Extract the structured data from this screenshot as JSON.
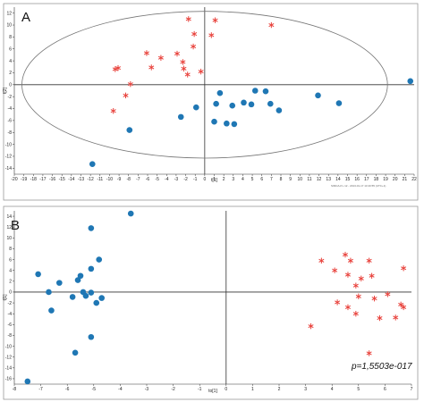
{
  "colors": {
    "group1": "#1f77b4",
    "group2": "#e8403a",
    "frame": "#9a9a9a"
  },
  "chart_data": [
    {
      "type": "scatter",
      "panel_label": "A",
      "xlabel": "t[1]",
      "ylabel": "t[2]",
      "xlim": [
        -20,
        22
      ],
      "ylim": [
        -15,
        13
      ],
      "x_ticks": [
        -20,
        -19,
        -18,
        -17,
        -16,
        -15,
        -14,
        -13,
        -12,
        -11,
        -10,
        -9,
        -8,
        -7,
        -6,
        -5,
        -4,
        -3,
        -2,
        -1,
        0,
        1,
        2,
        3,
        4,
        5,
        6,
        7,
        8,
        9,
        10,
        11,
        12,
        13,
        14,
        15,
        16,
        17,
        18,
        19,
        20,
        21,
        22
      ],
      "y_ticks": [
        12,
        10,
        8,
        6,
        4,
        2,
        0,
        -2,
        -4,
        -6,
        -8,
        -10,
        -12,
        -14
      ],
      "x_tick_labels": [
        "-20",
        "-19",
        "-18",
        "-17",
        "-16",
        "-15",
        "-14",
        "-13",
        "-12",
        "-11",
        "-10",
        "-9",
        "-8",
        "-7",
        "-6",
        "-5",
        "-4",
        "-3",
        "-2",
        "-1",
        "0",
        "1",
        "2",
        "3",
        "4",
        "5",
        "6",
        "7",
        "8",
        "9",
        "10",
        "11",
        "12",
        "13",
        "14",
        "15",
        "16",
        "17",
        "18",
        "19",
        "20",
        "21",
        "22"
      ],
      "y_tick_labels": [
        "12",
        "10",
        "8",
        "6",
        "4",
        "2",
        "0",
        "-2",
        "-4",
        "-6",
        "-8",
        "-10",
        "-12",
        "-14"
      ],
      "ellipse": {
        "cx": 0,
        "cy": 0,
        "rx": 19.2,
        "ry": 12.3
      },
      "footnote": "SIMCA-P+ 12 - 2013-01-17 13:40:55 (UTC+1)",
      "grid": false,
      "series": [
        {
          "marker": "circle",
          "points": [
            [
              -11.8,
              -13.3
            ],
            [
              -7.9,
              -7.6
            ],
            [
              -2.5,
              -5.4
            ],
            [
              -0.9,
              -3.8
            ],
            [
              1,
              -6.2
            ],
            [
              1.2,
              -3.2
            ],
            [
              1.6,
              -1.4
            ],
            [
              2.3,
              -6.5
            ],
            [
              2.9,
              -3.5
            ],
            [
              3.1,
              -6.6
            ],
            [
              4.1,
              -3
            ],
            [
              4.9,
              -3.3
            ],
            [
              5.3,
              -1
            ],
            [
              6.4,
              -1.1
            ],
            [
              6.9,
              -3.2
            ],
            [
              7.8,
              -4.3
            ],
            [
              11.9,
              -1.8
            ],
            [
              14.1,
              -3.1
            ],
            [
              21.6,
              0.6
            ]
          ]
        },
        {
          "marker": "asterisk",
          "points": [
            [
              -1.7,
              11
            ],
            [
              1.1,
              10.8
            ],
            [
              7,
              10
            ],
            [
              -1.1,
              8.5
            ],
            [
              0.7,
              8.3
            ],
            [
              -1.2,
              6.4
            ],
            [
              -6.1,
              5.3
            ],
            [
              -2.9,
              5.2
            ],
            [
              -4.6,
              4.5
            ],
            [
              -2.3,
              3.8
            ],
            [
              -9.1,
              2.8
            ],
            [
              -5.6,
              2.9
            ],
            [
              -9.4,
              2.6
            ],
            [
              -2.2,
              2.7
            ],
            [
              -0.4,
              2.2
            ],
            [
              -1.8,
              1.7
            ],
            [
              -7.8,
              0.1
            ],
            [
              -8.3,
              -1.8
            ],
            [
              -9.6,
              -4.4
            ]
          ]
        }
      ]
    },
    {
      "type": "scatter",
      "panel_label": "B",
      "xlabel": "to[1]",
      "ylabel": "t[1]",
      "xlim": [
        -8,
        7
      ],
      "ylim": [
        -17,
        15
      ],
      "x_ticks": [
        -8,
        -7,
        -6,
        -5,
        -4,
        -3,
        -2,
        -1,
        0,
        1,
        2,
        3,
        4,
        5,
        6,
        7
      ],
      "y_ticks": [
        14,
        12,
        10,
        8,
        6,
        4,
        2,
        0,
        -2,
        -4,
        -6,
        -8,
        -10,
        -12,
        -14,
        -16
      ],
      "x_tick_labels": [
        "-8",
        "-7",
        "-6",
        "-5",
        "-4",
        "-3",
        "-2",
        "-1",
        "0",
        "1",
        "2",
        "3",
        "4",
        "5",
        "6",
        "7"
      ],
      "y_tick_labels": [
        "14",
        "12",
        "10",
        "8",
        "6",
        "4",
        "2",
        "0",
        "-2",
        "-4",
        "-6",
        "-8",
        "-10",
        "-12",
        "-14",
        "-16"
      ],
      "annotation": "p=1,5503e-017",
      "grid": false,
      "series": [
        {
          "marker": "circle",
          "points": [
            [
              -7.5,
              -16.5
            ],
            [
              -7.1,
              3.3
            ],
            [
              -6.7,
              0
            ],
            [
              -6.6,
              -3.4
            ],
            [
              -6.3,
              1.7
            ],
            [
              -5.8,
              -0.9
            ],
            [
              -5.6,
              2.2
            ],
            [
              -5.7,
              -11.2
            ],
            [
              -5.5,
              3
            ],
            [
              -5.4,
              0
            ],
            [
              -5.3,
              -0.7
            ],
            [
              -5.1,
              4.3
            ],
            [
              -5.1,
              -0.1
            ],
            [
              -5.1,
              -8.3
            ],
            [
              -5.1,
              11.8
            ],
            [
              -4.9,
              -2
            ],
            [
              -4.8,
              6
            ],
            [
              -4.7,
              -1.1
            ],
            [
              -3.6,
              14.5
            ]
          ]
        },
        {
          "marker": "asterisk",
          "points": [
            [
              3.2,
              -6.3
            ],
            [
              3.6,
              5.8
            ],
            [
              4.1,
              4
            ],
            [
              4.2,
              -1.9
            ],
            [
              4.5,
              6.9
            ],
            [
              4.6,
              -2.8
            ],
            [
              4.6,
              3.2
            ],
            [
              4.7,
              5.8
            ],
            [
              4.9,
              -4
            ],
            [
              4.9,
              1.2
            ],
            [
              5,
              -0.8
            ],
            [
              5.1,
              2.5
            ],
            [
              5.4,
              -11.3
            ],
            [
              5.4,
              5.8
            ],
            [
              5.5,
              3
            ],
            [
              5.6,
              -1.2
            ],
            [
              5.8,
              -4.8
            ],
            [
              6.1,
              -0.4
            ],
            [
              6.4,
              -4.7
            ],
            [
              6.6,
              -2.3
            ],
            [
              6.7,
              -2.8
            ],
            [
              6.7,
              4.4
            ]
          ]
        }
      ]
    }
  ]
}
